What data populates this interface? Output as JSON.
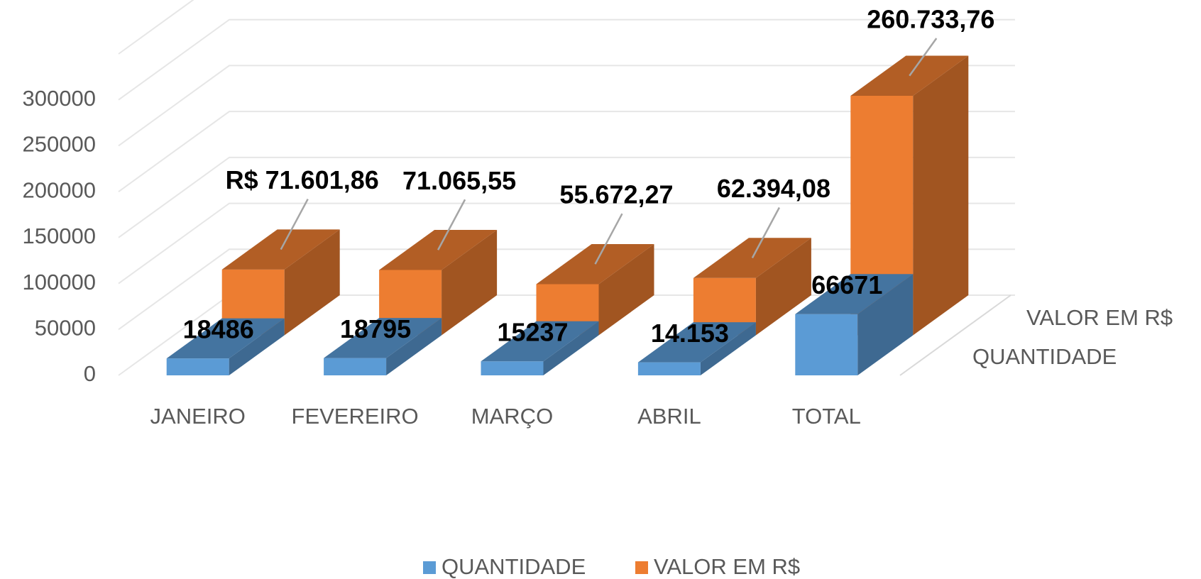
{
  "chart_data": {
    "type": "bar3d",
    "categories": [
      "JANEIRO",
      "FEVEREIRO",
      "MARÇO",
      "ABRIL",
      "TOTAL"
    ],
    "series": [
      {
        "name": "QUANTIDADE",
        "color": "#5b9bd5",
        "values": [
          18486,
          18795,
          15237,
          14153,
          66671
        ],
        "value_labels": [
          "18486",
          "18795",
          "15237",
          "14.153",
          "66671"
        ]
      },
      {
        "name": "VALOR EM R$",
        "color": "#ed7d31",
        "values": [
          71601.86,
          71065.55,
          55672.27,
          62394.08,
          260733.76
        ],
        "value_labels": [
          "R$ 71.601,86",
          "71.065,55",
          "55.672,27",
          "62.394,08",
          "260.733,76"
        ]
      }
    ],
    "ylim": [
      0,
      350000
    ],
    "yticks": [
      0,
      50000,
      100000,
      150000,
      200000,
      250000,
      300000
    ],
    "grid": true,
    "legend": "bottom"
  }
}
